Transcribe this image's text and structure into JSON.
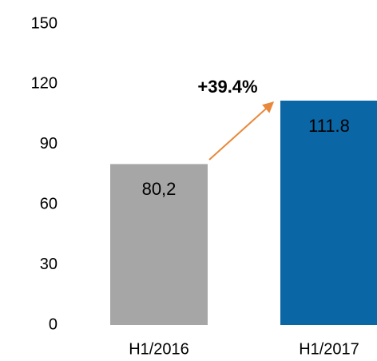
{
  "chart_data": {
    "type": "bar",
    "categories": [
      "H1/2016",
      "H1/2017"
    ],
    "values": [
      80.2,
      111.8
    ],
    "value_labels": [
      "80,2",
      "111.8"
    ],
    "colors": [
      "#a6a6a6",
      "#0a66a5"
    ],
    "ylim": [
      0,
      150
    ],
    "yticks": [
      0,
      30,
      60,
      90,
      120,
      150
    ],
    "grid": false,
    "annotation": {
      "text": "+39.4%",
      "color": "#e8883a"
    }
  }
}
